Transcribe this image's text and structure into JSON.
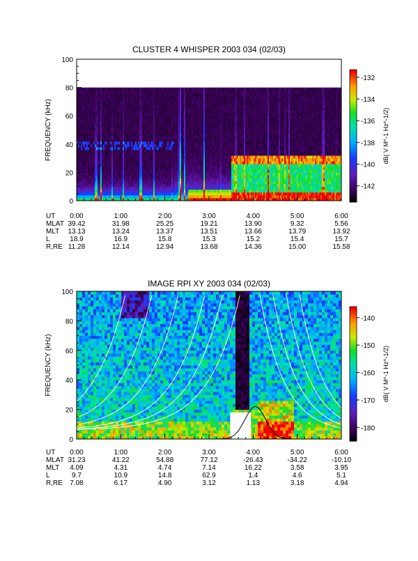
{
  "chart_data": [
    {
      "type": "heatmap",
      "title": "CLUSTER 4 WHISPER 2003 034 (02/03)",
      "ylabel": "FREQUENCY (kHz)",
      "ylim": [
        0,
        100
      ],
      "yticks": [
        "0",
        "20",
        "40",
        "60",
        "80",
        "100"
      ],
      "xticks": [
        "0:00",
        "1:00",
        "2:00",
        "3:00",
        "4:00",
        "5:00",
        "6:00"
      ],
      "data_max_freq": 80,
      "colorbar": {
        "label": "dB( V M^-1 Hz^-1/2)",
        "ticks": [
          "-132",
          "-134",
          "-136",
          "-138",
          "-140",
          "-142"
        ],
        "range": [
          -143.5,
          -131.3
        ]
      },
      "ephemeris": [
        {
          "label": "UT",
          "values": [
            "0:00",
            "1:00",
            "2:00",
            "3:00",
            "4:00",
            "5:00",
            "6:00"
          ]
        },
        {
          "label": "MLAT",
          "values": [
            "39.42",
            "31.98",
            "25.25",
            "19.21",
            "13.90",
            "9.32",
            "5.56"
          ]
        },
        {
          "label": "MLT",
          "values": [
            "13.13",
            "13.24",
            "13.37",
            "13.51",
            "13.66",
            "13.79",
            "13.92"
          ]
        },
        {
          "label": "L",
          "values": [
            "18.9",
            "16.9",
            "15.8",
            "15.3",
            "15.2",
            "15.4",
            "15.7"
          ]
        },
        {
          "label": "R,RE",
          "values": [
            "11.28",
            "12.14",
            "12.94",
            "13.68",
            "14.36",
            "15.00",
            "15.58"
          ]
        }
      ]
    },
    {
      "type": "heatmap",
      "title": "IMAGE RPI XY 2003 034 (02/03)",
      "ylabel": "FREQUENCY (kHz)",
      "ylim": [
        0,
        100
      ],
      "yticks": [
        "0",
        "20",
        "40",
        "60",
        "80",
        "100"
      ],
      "xticks": [
        "0:00",
        "1:00",
        "2:00",
        "3:00",
        "4:00",
        "5:00",
        "6:00"
      ],
      "colorbar": {
        "label": "dB( V M^-1 Hz^-1/2)",
        "ticks": [
          "-140",
          "-150",
          "-160",
          "-170",
          "-180"
        ],
        "range": [
          -185,
          -136
        ]
      },
      "ephemeris": [
        {
          "label": "UT",
          "values": [
            "0:00",
            "1:00",
            "2:00",
            "3:00",
            "4:00",
            "5:00",
            "6:00"
          ]
        },
        {
          "label": "MLAT",
          "values": [
            "31.23",
            "41.22",
            "54.88",
            "77.12",
            "-26.43",
            "-34.22",
            "-10.10"
          ]
        },
        {
          "label": "MLT",
          "values": [
            "4.09",
            "4.31",
            "4.74",
            "7.14",
            "16.22",
            "3.58",
            "3.95"
          ]
        },
        {
          "label": "L",
          "values": [
            "9.7",
            "10.9",
            "14.8",
            "62.9",
            "1.4",
            "4.6",
            "5.1"
          ]
        },
        {
          "label": "R,RE",
          "values": [
            "7.08",
            "6.17",
            "4.90",
            "3.12",
            "1.13",
            "3.18",
            "4.94"
          ]
        }
      ]
    }
  ]
}
